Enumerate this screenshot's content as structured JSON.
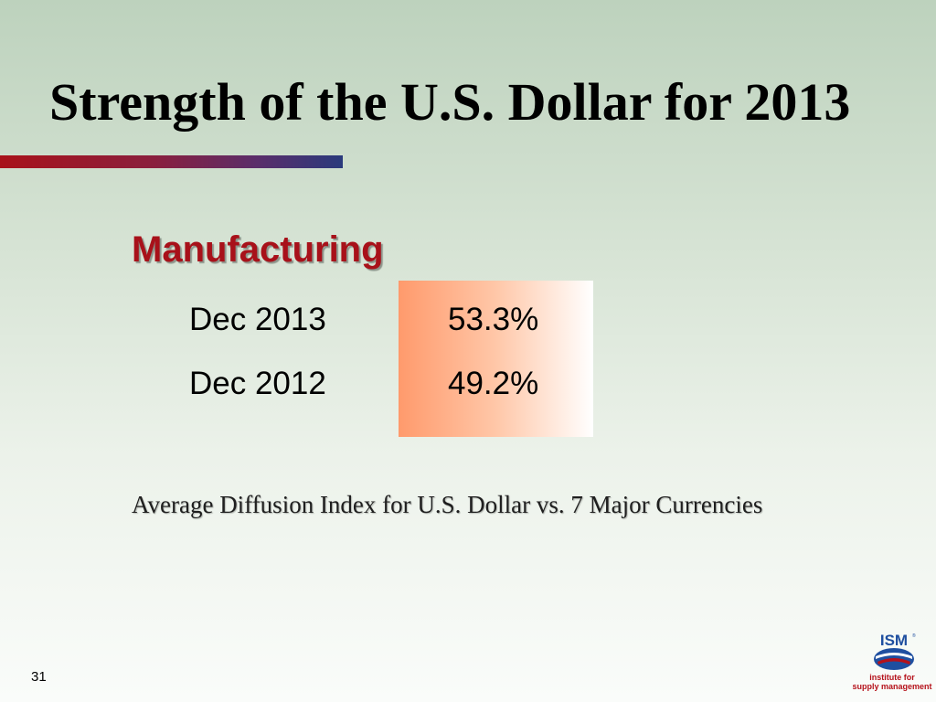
{
  "slide": {
    "title": "Strength of the U.S. Dollar for 2013",
    "section_heading": "Manufacturing",
    "rows": [
      {
        "label": "Dec 2013",
        "value": "53.3%"
      },
      {
        "label": "Dec 2012",
        "value": "49.2%"
      }
    ],
    "caption": "Average Diffusion Index for U.S. Dollar vs. 7 Major Currencies",
    "page_number": "31"
  },
  "logo": {
    "text_mark": "ISM",
    "name_line_1": "institute for",
    "name_line_2": "supply management"
  },
  "colors": {
    "title": "#000000",
    "heading": "#a8111a",
    "accent_bar_start": "#a8121a",
    "accent_bar_end": "#2a3a7c",
    "value_box_start": "#ff9a6c",
    "value_box_end": "#ffffff",
    "logo_blue": "#1f4fa0",
    "logo_red": "#b5121b"
  }
}
